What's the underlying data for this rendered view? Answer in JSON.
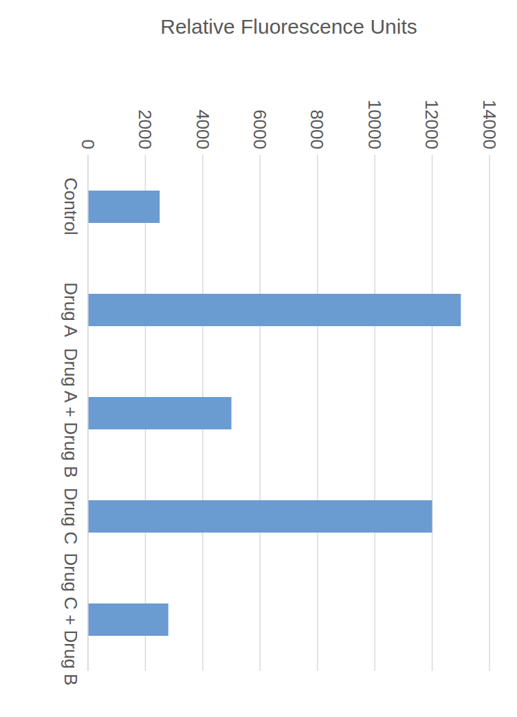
{
  "chart_data": {
    "type": "bar",
    "y_label": "Relative Fluorescence Units",
    "categories": [
      "Control",
      "Drug A",
      "Drug A + Drug B",
      "Drug C",
      "Drug C + Drug B"
    ],
    "values": [
      2500,
      13000,
      5000,
      12000,
      2800
    ],
    "color": "#6a9bd1",
    "ylim": [
      0,
      14000
    ],
    "yticks": [
      0,
      2000,
      4000,
      6000,
      8000,
      10000,
      12000,
      14000
    ],
    "grid": true,
    "orientation": "horizontal"
  }
}
